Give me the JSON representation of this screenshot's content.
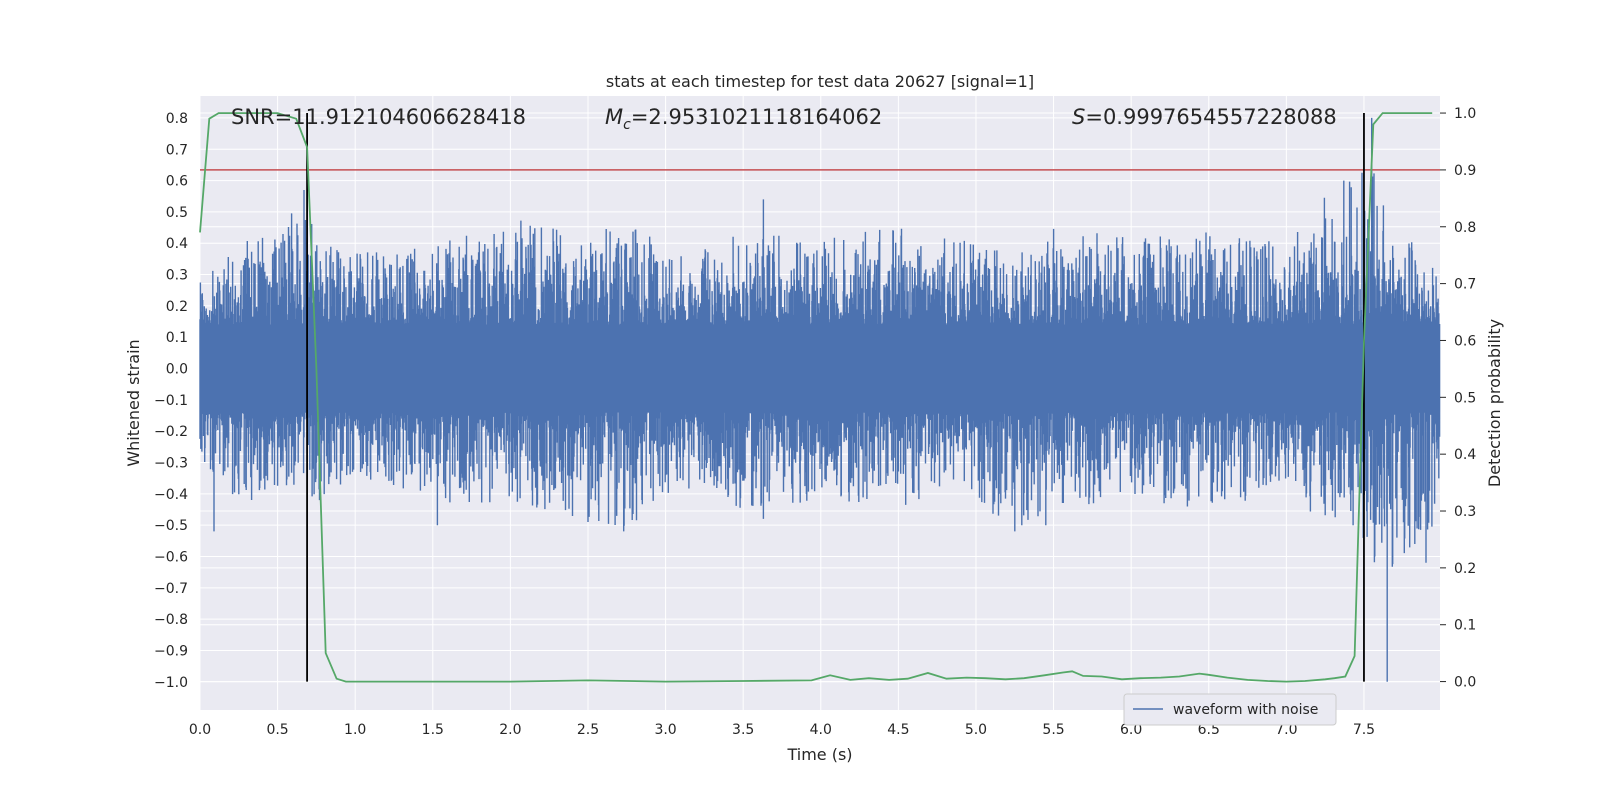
{
  "chart_data": {
    "type": "line",
    "title": "stats at each timestep for test data 20627 [signal=1]",
    "xlabel": "Time (s)",
    "ylabel": "Whitened strain",
    "y2label": "Detection probability",
    "xlim": [
      0,
      7.99
    ],
    "ylim": [
      -1.09,
      0.87
    ],
    "y2lim": [
      -0.05,
      1.03
    ],
    "x_ticks": [
      0.0,
      0.5,
      1.0,
      1.5,
      2.0,
      2.5,
      3.0,
      3.5,
      4.0,
      4.5,
      5.0,
      5.5,
      6.0,
      6.5,
      7.0,
      7.5
    ],
    "x_tick_labels": [
      "0.0",
      "0.5",
      "1.0",
      "1.5",
      "2.0",
      "2.5",
      "3.0",
      "3.5",
      "4.0",
      "4.5",
      "5.0",
      "5.5",
      "6.0",
      "6.5",
      "7.0",
      "7.5"
    ],
    "y_ticks": [
      0.8,
      0.7,
      0.6,
      0.5,
      0.4,
      0.3,
      0.2,
      0.1,
      0.0,
      -0.1,
      -0.2,
      -0.3,
      -0.4,
      -0.5,
      -0.6,
      -0.7,
      -0.8,
      -0.9,
      -1.0
    ],
    "y_tick_labels": [
      "0.8",
      "0.7",
      "0.6",
      "0.5",
      "0.4",
      "0.3",
      "0.2",
      "0.1",
      "0.0",
      "−0.1",
      "−0.2",
      "−0.3",
      "−0.4",
      "−0.5",
      "−0.6",
      "−0.7",
      "−0.8",
      "−0.9",
      "−1.0"
    ],
    "y2_ticks": [
      1.0,
      0.9,
      0.8,
      0.7,
      0.6,
      0.5,
      0.4,
      0.3,
      0.2,
      0.1,
      0.0
    ],
    "y2_tick_labels": [
      "1.0",
      "0.9",
      "0.8",
      "0.7",
      "0.6",
      "0.5",
      "0.4",
      "0.3",
      "0.2",
      "0.1",
      "0.0"
    ],
    "grid": true,
    "legend": {
      "placement": "lower-right",
      "entries": [
        "waveform with noise"
      ]
    },
    "annotations": {
      "snr": "SNR=11.912104606628418",
      "mc_symbol": "M",
      "mc_sub": "c",
      "mc_value": "=2.9531021118164062",
      "s_symbol": "S",
      "s_value": "=0.9997654557228088"
    },
    "threshold": {
      "y2": 0.9,
      "color": "#c44e52"
    },
    "vertical_lines": [
      0.69,
      7.5
    ],
    "series": [
      {
        "name": "waveform with noise",
        "axis": "left",
        "color": "#4c72b0",
        "envelope_x": [
          0.0,
          0.25,
          0.5,
          0.69,
          0.75,
          1.0,
          1.5,
          2.0,
          2.5,
          2.75,
          3.0,
          3.5,
          4.0,
          4.5,
          5.0,
          5.25,
          5.5,
          6.0,
          6.5,
          7.0,
          7.25,
          7.35,
          7.45,
          7.55,
          7.62,
          7.65,
          7.7,
          7.85,
          7.99
        ],
        "envelope_max": [
          0.3,
          0.4,
          0.45,
          0.57,
          0.42,
          0.38,
          0.4,
          0.48,
          0.45,
          0.46,
          0.4,
          0.43,
          0.42,
          0.45,
          0.4,
          0.36,
          0.45,
          0.42,
          0.44,
          0.4,
          0.55,
          0.6,
          0.65,
          0.65,
          0.55,
          0.52,
          0.45,
          0.4,
          0.3
        ],
        "envelope_min": [
          -0.3,
          -0.45,
          -0.38,
          -0.4,
          -0.42,
          -0.35,
          -0.45,
          -0.42,
          -0.5,
          -0.52,
          -0.4,
          -0.45,
          -0.42,
          -0.45,
          -0.42,
          -0.52,
          -0.45,
          -0.42,
          -0.45,
          -0.4,
          -0.5,
          -0.55,
          -0.55,
          -0.62,
          -0.65,
          -1.0,
          -0.6,
          -0.6,
          -0.45
        ],
        "peaks": [
          [
            0.09,
            -0.52
          ],
          [
            0.67,
            0.57
          ],
          [
            0.77,
            -0.42
          ],
          [
            1.53,
            -0.5
          ],
          [
            2.73,
            -0.52
          ],
          [
            3.63,
            0.54
          ],
          [
            3.63,
            -0.48
          ],
          [
            5.25,
            -0.52
          ],
          [
            5.45,
            -0.5
          ],
          [
            7.37,
            0.6
          ],
          [
            7.55,
            0.8
          ],
          [
            7.57,
            -0.6
          ],
          [
            7.65,
            -1.0
          ],
          [
            7.9,
            -0.62
          ]
        ]
      },
      {
        "name": "",
        "axis": "right",
        "color": "#55a868",
        "x": [
          0.0,
          0.06,
          0.12,
          0.25,
          0.5,
          0.62,
          0.69,
          0.75,
          0.81,
          0.88,
          0.94,
          1.0,
          1.5,
          2.0,
          2.5,
          3.0,
          3.5,
          3.94,
          4.06,
          4.19,
          4.31,
          4.44,
          4.56,
          4.69,
          4.81,
          4.94,
          5.06,
          5.19,
          5.31,
          5.44,
          5.56,
          5.62,
          5.69,
          5.81,
          5.94,
          6.06,
          6.19,
          6.31,
          6.44,
          6.5,
          6.62,
          6.75,
          6.88,
          7.0,
          7.12,
          7.25,
          7.31,
          7.38,
          7.44,
          7.5,
          7.56,
          7.62,
          7.75,
          7.94
        ],
        "y": [
          0.79,
          0.99,
          1.0,
          1.0,
          1.0,
          0.99,
          0.94,
          0.55,
          0.05,
          0.005,
          0.0,
          0.0,
          0.0,
          0.0,
          0.002,
          0.0,
          0.001,
          0.002,
          0.011,
          0.003,
          0.006,
          0.003,
          0.005,
          0.015,
          0.005,
          0.007,
          0.006,
          0.004,
          0.006,
          0.011,
          0.016,
          0.018,
          0.01,
          0.009,
          0.004,
          0.006,
          0.007,
          0.009,
          0.014,
          0.012,
          0.007,
          0.003,
          0.001,
          0.0,
          0.001,
          0.004,
          0.006,
          0.009,
          0.045,
          0.6,
          0.98,
          1.0,
          1.0,
          1.0
        ]
      }
    ]
  }
}
